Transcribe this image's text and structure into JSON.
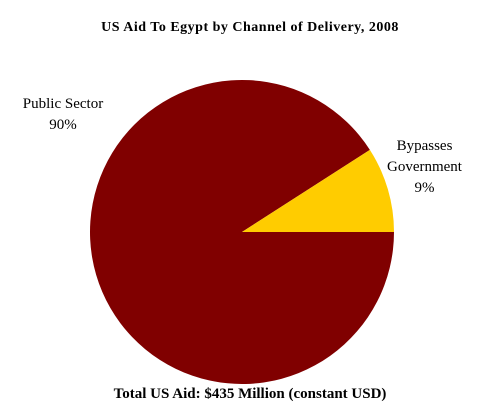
{
  "chart_data": {
    "type": "pie",
    "title": "US Aid To Egypt by Channel of Delivery, 2008",
    "annotation": "Total US Aid: $435 Million (constant USD)",
    "categories": [
      "Public Sector",
      "Bypasses Government"
    ],
    "values": [
      90,
      9
    ],
    "value_labels": [
      "90%",
      "9%"
    ],
    "colors": [
      "#800000",
      "#ffcc00"
    ]
  }
}
